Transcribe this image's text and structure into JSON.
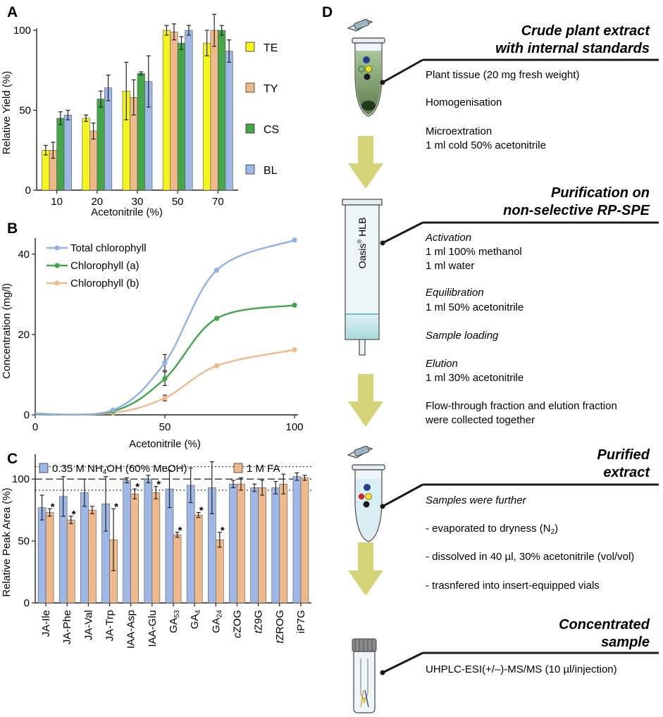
{
  "panels": {
    "A": "A",
    "B": "B",
    "C": "C",
    "D": "D"
  },
  "chart_data": [
    {
      "panel": "A",
      "type": "bar",
      "ylabel": "Relative Yield (%)",
      "xlabel": "Acetonitrile (%)",
      "ylim": [
        0,
        100
      ],
      "yticks": [
        "0",
        "50",
        "100"
      ],
      "categories": [
        "10",
        "20",
        "30",
        "50",
        "70"
      ],
      "series": [
        {
          "name": "TE",
          "color": "#f5f51e",
          "values": [
            25,
            45,
            62,
            100,
            92
          ],
          "errors": [
            3,
            2,
            18,
            3,
            8
          ]
        },
        {
          "name": "TY",
          "color": "#f0b98c",
          "values": [
            25,
            37,
            58,
            99,
            100
          ],
          "errors": [
            5,
            5,
            11,
            5,
            10
          ]
        },
        {
          "name": "CS",
          "color": "#45a748",
          "values": [
            45,
            57,
            73,
            92,
            100
          ],
          "errors": [
            4,
            5,
            1,
            4,
            3
          ]
        },
        {
          "name": "BL",
          "color": "#9db8e6",
          "values": [
            47,
            64,
            68,
            100,
            87
          ],
          "errors": [
            3,
            8,
            16,
            3,
            7
          ]
        }
      ],
      "legend_position": "right"
    },
    {
      "panel": "B",
      "type": "line",
      "ylabel": "Concentration (mg/l)",
      "xlabel": "Acetonitrile (%)",
      "xlim": [
        0,
        100
      ],
      "ylim": [
        0,
        44
      ],
      "xticks": [
        "0",
        "50",
        "100"
      ],
      "yticks": [
        "0",
        "20",
        "40"
      ],
      "x": [
        0,
        30,
        50,
        70,
        100
      ],
      "series": [
        {
          "name": "Total chlorophyll",
          "color": "#8fb2e6",
          "values": [
            0.3,
            1.2,
            13.0,
            36.0,
            43.5
          ],
          "errors": [
            0,
            0,
            2.0,
            0,
            0
          ]
        },
        {
          "name": "Chlorophyll (a)",
          "color": "#3fa64a",
          "values": [
            0.2,
            0.9,
            9.0,
            24.0,
            27.3
          ],
          "errors": [
            0,
            0,
            1.7,
            0,
            0
          ]
        },
        {
          "name": "Chlorophyll (b)",
          "color": "#f2b98a",
          "values": [
            0.1,
            0.5,
            4.2,
            12.2,
            16.2
          ],
          "errors": [
            0,
            0,
            0.7,
            0,
            0
          ]
        }
      ],
      "legend_position": "top-left"
    },
    {
      "panel": "C",
      "type": "bar",
      "ylabel": "Relative Peak Area (%)",
      "ylim": [
        0,
        120
      ],
      "yticks": [
        "0",
        "50",
        "100"
      ],
      "reference_lines": [
        100,
        91,
        110
      ],
      "categories": [
        {
          "base": "JA-Ile",
          "sub": "",
          "italic": ""
        },
        {
          "base": "JA-Phe",
          "sub": "",
          "italic": ""
        },
        {
          "base": "JA-Val",
          "sub": "",
          "italic": ""
        },
        {
          "base": "JA-Trp",
          "sub": "",
          "italic": ""
        },
        {
          "base": "IAA-Asp",
          "sub": "",
          "italic": ""
        },
        {
          "base": "IAA-Glu",
          "sub": "",
          "italic": ""
        },
        {
          "base": "GA",
          "sub": "53",
          "italic": ""
        },
        {
          "base": "GA",
          "sub": "4",
          "italic": ""
        },
        {
          "base": "GA",
          "sub": "24",
          "italic": ""
        },
        {
          "base": "ZOG",
          "sub": "",
          "italic": "c"
        },
        {
          "base": "Z9G",
          "sub": "",
          "italic": "t"
        },
        {
          "base": "ZROG",
          "sub": "",
          "italic": "t"
        },
        {
          "base": "iP7G",
          "sub": "",
          "italic": ""
        }
      ],
      "series": [
        {
          "name_prefix": "0.35 M NH",
          "name_sub": "4",
          "name_suffix": "OH (60% MeOH)",
          "color": "#9db8e6",
          "values": [
            77,
            86,
            89,
            80,
            99,
            100,
            92,
            95,
            93,
            96,
            93,
            93,
            102
          ],
          "errors": [
            10,
            16,
            11,
            22,
            2,
            3,
            15,
            14,
            21,
            3,
            3,
            5,
            3
          ]
        },
        {
          "name": "1 M FA",
          "color": "#f0b98c",
          "values": [
            73,
            67,
            75,
            51,
            88,
            89,
            55,
            71,
            51,
            96,
            93,
            96,
            101
          ],
          "errors": [
            3,
            3,
            3,
            25,
            4,
            5,
            2,
            2,
            6,
            5,
            6,
            8,
            2
          ]
        }
      ],
      "significance_marks": [
        0,
        1,
        3,
        4,
        5,
        6,
        7,
        8
      ],
      "significance_symbol": "*",
      "legend_position": "top"
    }
  ],
  "workflow": {
    "steps": [
      {
        "title1": "Crude plant extract",
        "title2": "with internal standards",
        "lines": [
          "Plant tissue (20 mg fresh weight)",
          "Homogenisation",
          "Microextration",
          "1 ml cold 50% acetonitrile"
        ]
      },
      {
        "title1": "Purification on",
        "title2": "non-selective RP-SPE",
        "column_label": "Oasis",
        "column_label_sup": "®",
        "column_label_suffix": " HLB",
        "sub_a": "Activation",
        "a1": "1 ml 100% methanol",
        "a2": "1 ml water",
        "sub_b": "Equilibration",
        "b1": "1 ml 50% acetonitrile",
        "sub_c": "Sample loading",
        "sub_d": "Elution",
        "d1": "1 ml 30% acetonitrile",
        "e1": "Flow-through fraction and elution fraction",
        "e2": "were collected together"
      },
      {
        "title1": "Purified",
        "title2": "extract",
        "intro": "Samples were further",
        "l1_pre": "- evaporated to dryness (N",
        "l1_sub": "2",
        "l1_post": ")",
        "l2": "- dissolved in 40 µl, 30% acetonitrile (vol/vol)",
        "l3": "- trasnfered into insert-equipped vials"
      },
      {
        "title1": "Concentrated",
        "title2": "sample",
        "line": "UHPLC-ESI(+/–)-MS/MS (10 µl/injection)"
      }
    ]
  }
}
